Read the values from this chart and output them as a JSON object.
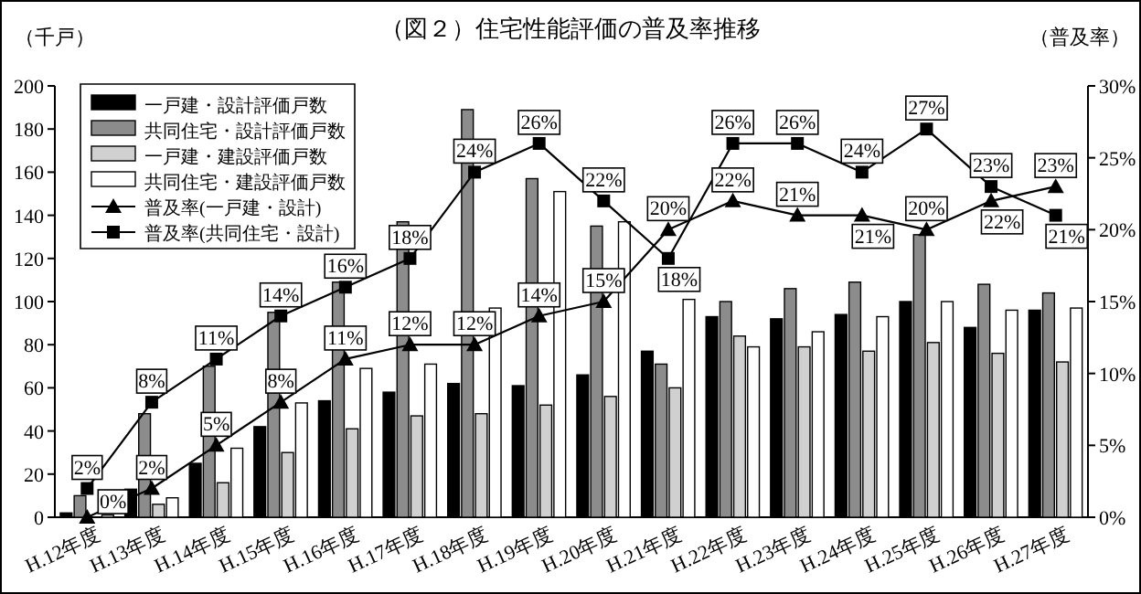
{
  "chart_data": {
    "type": "bar",
    "title": "（図２）住宅性能評価の普及率推移",
    "ylabel": "（千戸）",
    "y2label": "（普及率）",
    "categories": [
      "H.12年度",
      "H.13年度",
      "H.14年度",
      "H.15年度",
      "H.16年度",
      "H.17年度",
      "H.18年度",
      "H.19年度",
      "H.20年度",
      "H.21年度",
      "H.22年度",
      "H.23年度",
      "H.24年度",
      "H.25年度",
      "H.26年度",
      "H.27年度"
    ],
    "series": [
      {
        "name": "一戸建・設計評価戸数",
        "color": "#000000",
        "values": [
          2,
          13,
          25,
          42,
          54,
          58,
          62,
          61,
          66,
          77,
          93,
          92,
          94,
          100,
          88,
          96
        ]
      },
      {
        "name": "共同住宅・設計評価戸数",
        "color": "#8c8c8c",
        "values": [
          10,
          48,
          70,
          95,
          109,
          137,
          189,
          157,
          135,
          71,
          100,
          106,
          109,
          131,
          108,
          104
        ]
      },
      {
        "name": "一戸建・建設評価戸数",
        "color": "#d0d0d0",
        "values": [
          null,
          6,
          16,
          30,
          41,
          47,
          48,
          52,
          56,
          60,
          84,
          79,
          77,
          81,
          76,
          72
        ]
      },
      {
        "name": "共同住宅・建設評価戸数",
        "color": "#ffffff",
        "values": [
          1,
          9,
          32,
          53,
          69,
          71,
          97,
          151,
          137,
          101,
          79,
          86,
          93,
          100,
          96,
          97
        ]
      },
      {
        "name": "普及率(一戸建・設計)",
        "type": "line",
        "axis": "y2",
        "marker": "triangle",
        "color": "#000000",
        "values": [
          0,
          2,
          5,
          8,
          11,
          12,
          12,
          14,
          15,
          20,
          22,
          21,
          21,
          20,
          22,
          23
        ],
        "value_labels": [
          "0%",
          "2%",
          "5%",
          "8%",
          "11%",
          "12%",
          "12%",
          "14%",
          "15%",
          "20%",
          "22%",
          "21%",
          "21%",
          "20%",
          "22%",
          "23%"
        ]
      },
      {
        "name": "普及率(共同住宅・設計)",
        "type": "line",
        "axis": "y2",
        "marker": "square",
        "color": "#000000",
        "values": [
          2,
          8,
          11,
          14,
          16,
          18,
          24,
          26,
          22,
          18,
          26,
          26,
          24,
          27,
          23,
          21
        ],
        "value_labels": [
          "2%",
          "8%",
          "11%",
          "14%",
          "16%",
          "18%",
          "24%",
          "26%",
          "22%",
          "18%",
          "26%",
          "26%",
          "24%",
          "27%",
          "23%",
          "21%"
        ]
      }
    ],
    "ylim": [
      0,
      200
    ],
    "yticks": [
      0,
      20,
      40,
      60,
      80,
      100,
      120,
      140,
      160,
      180,
      200
    ],
    "y2lim": [
      0,
      30
    ],
    "y2ticks": [
      {
        "value": 0,
        "label": "0%"
      },
      {
        "value": 5,
        "label": "5%"
      },
      {
        "value": 10,
        "label": "10%"
      },
      {
        "value": 15,
        "label": "15%"
      },
      {
        "value": 20,
        "label": "20%"
      },
      {
        "value": 25,
        "label": "25%"
      },
      {
        "value": 30,
        "label": "30%"
      }
    ],
    "legend": "top left",
    "grid": false
  }
}
